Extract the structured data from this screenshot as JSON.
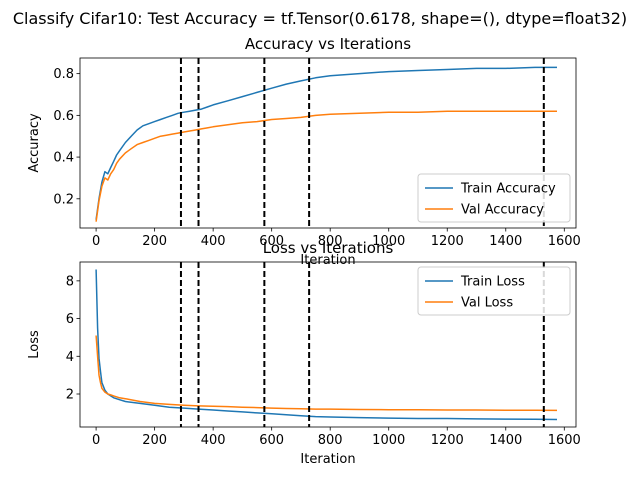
{
  "suptitle": "Classify Cifar10: Test Accuracy = tf.Tensor(0.6178, shape=(), dtype=float32)",
  "colors": {
    "train": "#1f77b4",
    "val": "#ff7f0e",
    "vline": "#000000"
  },
  "chart_data": [
    {
      "type": "line",
      "title": "Accuracy vs Iterations",
      "xlabel": "Iteration",
      "ylabel": "Accuracy",
      "xlim": [
        -55,
        1640
      ],
      "ylim": [
        0.06,
        0.875
      ],
      "xticks": [
        0,
        200,
        400,
        600,
        800,
        1000,
        1200,
        1400,
        1600
      ],
      "yticks": [
        0.2,
        0.4,
        0.6,
        0.8
      ],
      "vlines": [
        290,
        350,
        575,
        728,
        1530
      ],
      "legend": "lower-right",
      "series": [
        {
          "name": "Train Accuracy",
          "color_key": "train",
          "x": [
            0,
            10,
            20,
            30,
            40,
            50,
            60,
            70,
            80,
            100,
            120,
            140,
            160,
            180,
            200,
            220,
            240,
            260,
            280,
            300,
            320,
            340,
            360,
            380,
            400,
            450,
            500,
            550,
            600,
            650,
            700,
            750,
            800,
            900,
            1000,
            1100,
            1200,
            1300,
            1400,
            1500,
            1575
          ],
          "y": [
            0.1,
            0.2,
            0.28,
            0.33,
            0.32,
            0.35,
            0.38,
            0.41,
            0.43,
            0.47,
            0.5,
            0.53,
            0.55,
            0.56,
            0.57,
            0.58,
            0.59,
            0.6,
            0.61,
            0.615,
            0.62,
            0.625,
            0.63,
            0.64,
            0.65,
            0.67,
            0.69,
            0.71,
            0.73,
            0.75,
            0.765,
            0.78,
            0.79,
            0.8,
            0.81,
            0.815,
            0.82,
            0.825,
            0.825,
            0.83,
            0.83
          ]
        },
        {
          "name": "Val Accuracy",
          "color_key": "val",
          "x": [
            0,
            10,
            20,
            30,
            40,
            50,
            60,
            70,
            80,
            100,
            120,
            140,
            160,
            180,
            200,
            220,
            240,
            260,
            280,
            300,
            320,
            340,
            360,
            380,
            400,
            450,
            500,
            550,
            600,
            650,
            700,
            750,
            800,
            900,
            1000,
            1100,
            1200,
            1300,
            1400,
            1500,
            1575
          ],
          "y": [
            0.09,
            0.19,
            0.26,
            0.3,
            0.29,
            0.32,
            0.34,
            0.37,
            0.39,
            0.42,
            0.44,
            0.46,
            0.47,
            0.48,
            0.49,
            0.5,
            0.505,
            0.51,
            0.515,
            0.52,
            0.525,
            0.53,
            0.535,
            0.54,
            0.545,
            0.555,
            0.565,
            0.57,
            0.58,
            0.585,
            0.59,
            0.6,
            0.605,
            0.61,
            0.615,
            0.615,
            0.62,
            0.62,
            0.62,
            0.62,
            0.62
          ]
        }
      ]
    },
    {
      "type": "line",
      "title": "Loss vs Iterations",
      "xlabel": "Iteration",
      "ylabel": "Loss",
      "xlim": [
        -55,
        1640
      ],
      "ylim": [
        0.25,
        9.0
      ],
      "xticks": [
        0,
        200,
        400,
        600,
        800,
        1000,
        1200,
        1400,
        1600
      ],
      "yticks": [
        2,
        4,
        6,
        8
      ],
      "vlines": [
        290,
        350,
        575,
        728,
        1530
      ],
      "legend": "top-right",
      "series": [
        {
          "name": "Train Loss",
          "color_key": "train",
          "x": [
            0,
            5,
            10,
            15,
            20,
            30,
            40,
            50,
            60,
            80,
            100,
            150,
            200,
            250,
            300,
            350,
            400,
            450,
            500,
            550,
            600,
            650,
            700,
            750,
            800,
            900,
            1000,
            1100,
            1200,
            1300,
            1400,
            1500,
            1575
          ],
          "y": [
            8.6,
            5.5,
            3.9,
            3.2,
            2.6,
            2.2,
            2.0,
            1.9,
            1.8,
            1.7,
            1.6,
            1.5,
            1.4,
            1.3,
            1.25,
            1.2,
            1.15,
            1.1,
            1.05,
            1.0,
            0.95,
            0.9,
            0.85,
            0.8,
            0.78,
            0.75,
            0.72,
            0.7,
            0.7,
            0.68,
            0.67,
            0.66,
            0.65
          ]
        },
        {
          "name": "Val Loss",
          "color_key": "val",
          "x": [
            0,
            5,
            10,
            15,
            20,
            30,
            40,
            50,
            60,
            80,
            100,
            150,
            200,
            250,
            300,
            350,
            400,
            450,
            500,
            550,
            600,
            650,
            700,
            750,
            800,
            900,
            1000,
            1100,
            1200,
            1300,
            1400,
            1500,
            1575
          ],
          "y": [
            5.1,
            4.0,
            3.0,
            2.6,
            2.3,
            2.1,
            2.0,
            1.95,
            1.9,
            1.8,
            1.75,
            1.6,
            1.5,
            1.45,
            1.4,
            1.37,
            1.35,
            1.33,
            1.3,
            1.28,
            1.25,
            1.23,
            1.22,
            1.2,
            1.2,
            1.18,
            1.17,
            1.16,
            1.15,
            1.15,
            1.14,
            1.14,
            1.13
          ]
        }
      ]
    }
  ]
}
